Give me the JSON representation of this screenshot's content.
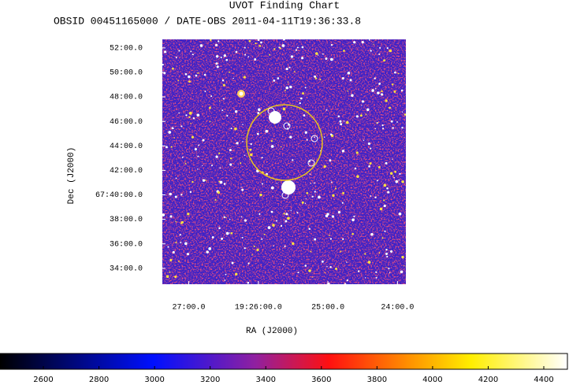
{
  "chart_data": {
    "type": "image",
    "title": "UVOT Finding Chart",
    "subtitle": "OBSID 00451165000 / DATE-OBS 2011-04-11T19:36:33.8",
    "x_label": "RA (J2000)",
    "y_label": "Dec (J2000)",
    "xlim": [
      27.38,
      23.88
    ],
    "xticks": [
      {
        "value": 27,
        "label": "27:00.0"
      },
      {
        "value": 26,
        "label": "19:26:00.0"
      },
      {
        "value": 25,
        "label": "25:00.0"
      },
      {
        "value": 24,
        "label": "24:00.0"
      }
    ],
    "ylim": [
      32.7,
      52.7
    ],
    "yticks": [
      {
        "value": 52,
        "label": "52:00.0"
      },
      {
        "value": 50,
        "label": "50:00.0"
      },
      {
        "value": 48,
        "label": "48:00.0"
      },
      {
        "value": 46,
        "label": "46:00.0"
      },
      {
        "value": 44,
        "label": "44:00.0"
      },
      {
        "value": 42,
        "label": "42:00.0"
      },
      {
        "value": 40,
        "label": "67:40:00.0"
      },
      {
        "value": 38,
        "label": "38:00.0"
      },
      {
        "value": 36,
        "label": "36:00.0"
      },
      {
        "value": 34,
        "label": "34:00.0"
      }
    ],
    "colorbar_lim": [
      2444,
      4485
    ],
    "colorbar_ticks": [
      2600,
      2800,
      3000,
      3200,
      3400,
      3600,
      3800,
      4000,
      4200,
      4400
    ]
  }
}
